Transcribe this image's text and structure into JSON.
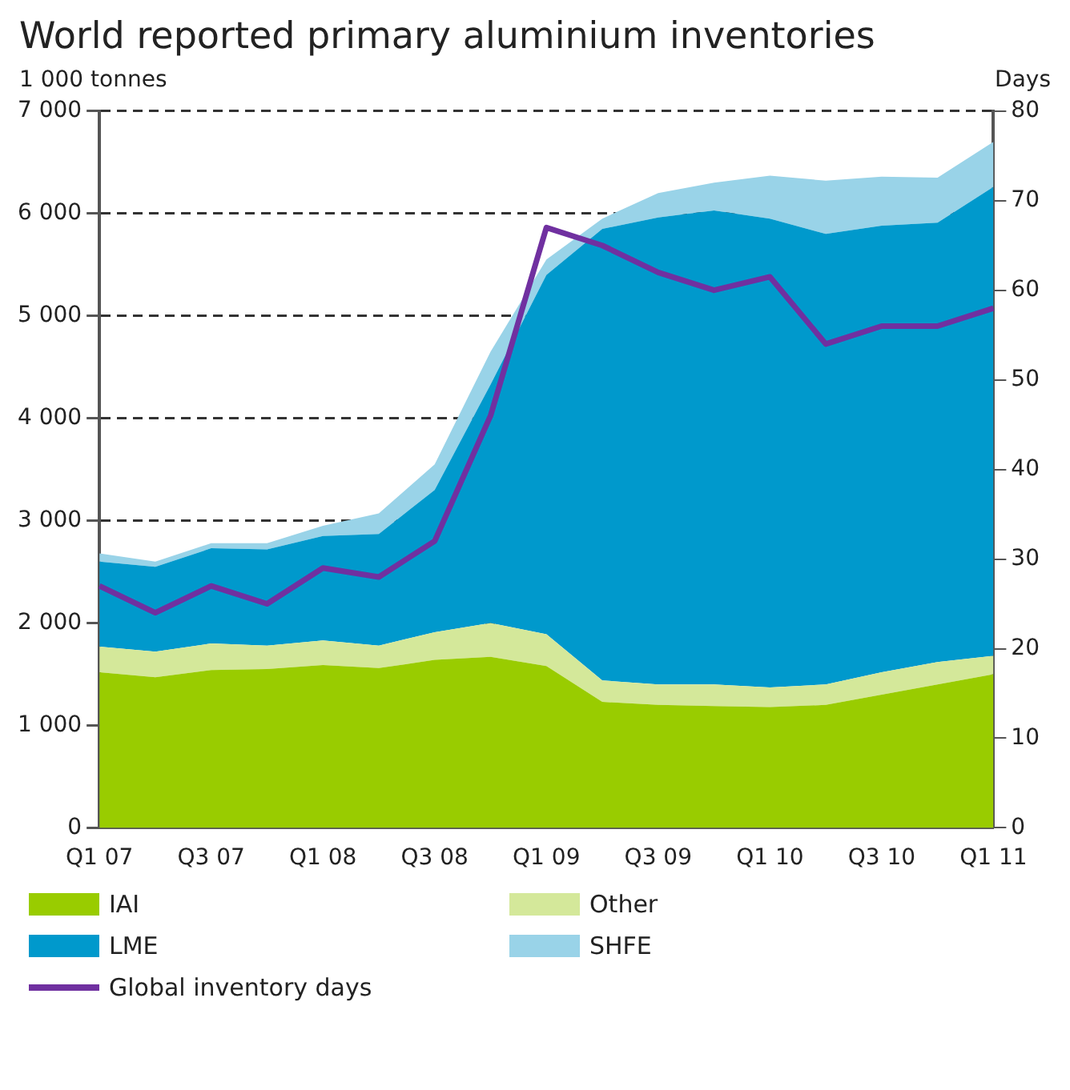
{
  "chart_data": {
    "type": "area",
    "title": "World reported primary aluminium inventories",
    "ylabel": "1 000 tonnes",
    "y2label": "Days",
    "categories": [
      "Q1 07",
      null,
      "Q3 07",
      null,
      "Q1 08",
      null,
      "Q3 08",
      null,
      "Q1 09",
      null,
      "Q3 09",
      null,
      "Q1 10",
      null,
      "Q3 10",
      null,
      "Q1 11"
    ],
    "stacked": true,
    "series": [
      {
        "name": "IAI",
        "color": "#99cc00",
        "values": [
          1520,
          1470,
          1540,
          1550,
          1590,
          1560,
          1640,
          1670,
          1580,
          1230,
          1200,
          1190,
          1180,
          1200,
          1300,
          1400,
          1500
        ]
      },
      {
        "name": "Other",
        "color": "#d4e89a",
        "values": [
          250,
          250,
          260,
          230,
          240,
          220,
          270,
          330,
          310,
          210,
          200,
          210,
          190,
          200,
          220,
          220,
          180
        ]
      },
      {
        "name": "LME",
        "color": "#0099cc",
        "values": [
          830,
          830,
          930,
          940,
          1020,
          1090,
          1390,
          2330,
          3510,
          4410,
          4560,
          4630,
          4580,
          4400,
          4360,
          4290,
          4580
        ]
      },
      {
        "name": "SHFE",
        "color": "#99d3e8",
        "values": [
          80,
          50,
          50,
          60,
          100,
          200,
          250,
          320,
          150,
          100,
          240,
          270,
          420,
          520,
          480,
          440,
          440
        ]
      },
      {
        "name": "Global inventory days",
        "type": "line",
        "axis": "y2",
        "color": "#7030a0",
        "values": [
          27,
          24,
          27,
          25,
          29,
          28,
          32,
          46,
          67,
          65,
          62,
          60,
          61.5,
          54,
          56,
          56,
          58
        ]
      }
    ],
    "ylim": [
      0,
      7000
    ],
    "yticks": [
      0,
      {
        "value": 1000,
        "label": "1 000"
      },
      {
        "value": 2000,
        "label": "2 000"
      },
      {
        "value": 3000,
        "label": "3 000"
      },
      {
        "value": 4000,
        "label": "4 000"
      },
      {
        "value": 5000,
        "label": "5 000"
      },
      {
        "value": 6000,
        "label": "6 000"
      },
      {
        "value": 7000,
        "label": "7 000"
      }
    ],
    "y2lim": [
      0,
      80
    ],
    "y2ticks": [
      0,
      10,
      20,
      30,
      40,
      50,
      60,
      70,
      80
    ],
    "grid": "y",
    "marker": "none",
    "legend": "bottom"
  }
}
